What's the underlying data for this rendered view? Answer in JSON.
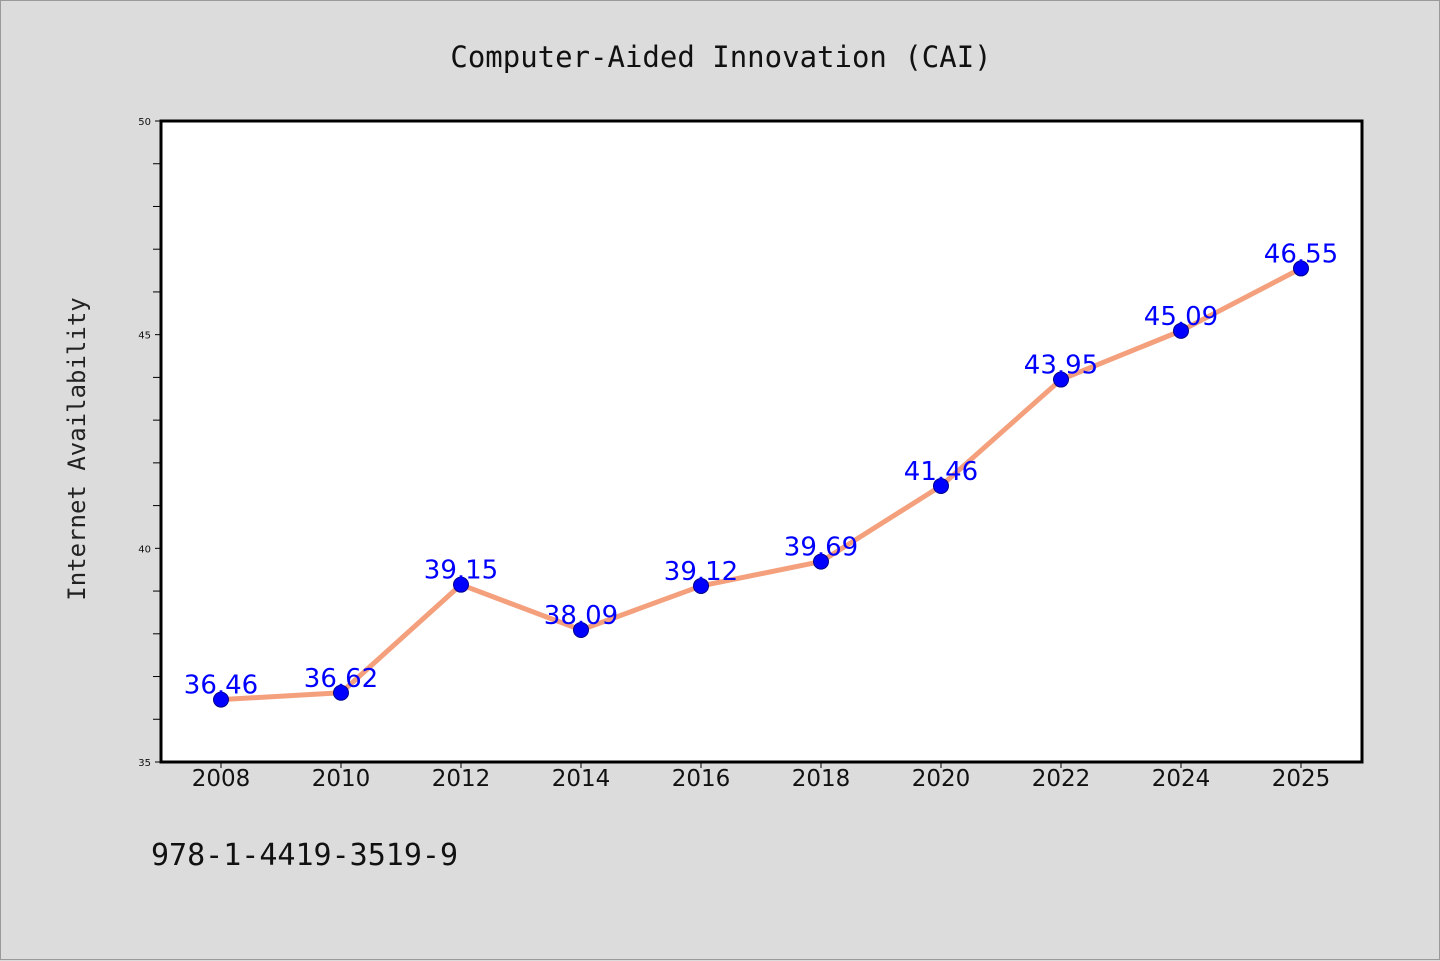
{
  "chart_data": {
    "type": "line",
    "title": "Computer-Aided Innovation (CAI)",
    "xlabel": "",
    "ylabel": "Internet Availability",
    "categories": [
      "2008",
      "2010",
      "2012",
      "2014",
      "2016",
      "2018",
      "2020",
      "2022",
      "2024",
      "2025"
    ],
    "series": [
      {
        "values": [
          36.46,
          36.62,
          39.15,
          38.09,
          39.12,
          39.69,
          41.46,
          43.95,
          45.09,
          46.55
        ]
      }
    ],
    "data_labels": [
      "36.46",
      "36.62",
      "39.15",
      "38.09",
      "39.12",
      "39.69",
      "41.46",
      "43.95",
      "45.09",
      "46.55"
    ],
    "ylim": [
      35,
      50
    ],
    "yticks": [
      "35",
      "40",
      "45",
      "50"
    ],
    "grid": false,
    "legend": "none",
    "line_color": "#f4a07c",
    "marker_color": "#0000ff",
    "label_color": "#0000ff"
  },
  "footnote": "978-1-4419-3519-9"
}
